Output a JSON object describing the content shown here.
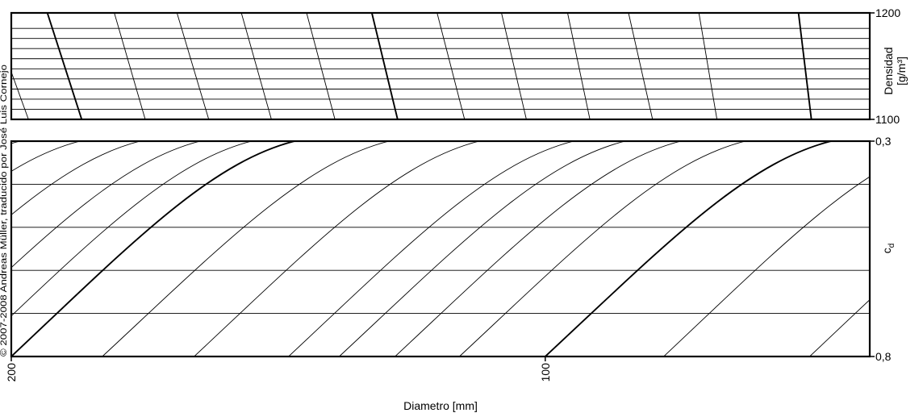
{
  "copyright": "© 2007-2008 Andreas Müller, traducido por José Luis Cornejo",
  "chart_data": [
    {
      "type": "line",
      "name": "density-panel",
      "ylabel_line1": "Densidad",
      "ylabel_line2": "[g/m³]",
      "ylim": [
        1100,
        1200
      ],
      "y_ticks": [
        {
          "value": 1200,
          "label": "1200"
        },
        {
          "value": 1100,
          "label": "1100"
        }
      ],
      "grid_y": [
        1100,
        1109.5,
        1119,
        1128.5,
        1138,
        1147.5,
        1157,
        1166.5,
        1176,
        1185.5,
        1200
      ],
      "xlim": [
        0,
        1
      ],
      "lines": [
        {
          "top": -0.025,
          "bottom": 0.02,
          "major": false
        },
        {
          "top": 0.042,
          "bottom": 0.082,
          "major": true
        },
        {
          "top": 0.12,
          "bottom": 0.156,
          "major": false
        },
        {
          "top": 0.193,
          "bottom": 0.23,
          "major": false
        },
        {
          "top": 0.268,
          "bottom": 0.303,
          "major": false
        },
        {
          "top": 0.344,
          "bottom": 0.377,
          "major": false
        },
        {
          "top": 0.42,
          "bottom": 0.45,
          "major": true
        },
        {
          "top": 0.496,
          "bottom": 0.528,
          "major": false
        },
        {
          "top": 0.571,
          "bottom": 0.6,
          "major": false
        },
        {
          "top": 0.648,
          "bottom": 0.674,
          "major": false
        },
        {
          "top": 0.719,
          "bottom": 0.747,
          "major": false
        },
        {
          "top": 0.801,
          "bottom": 0.822,
          "major": false
        },
        {
          "top": 0.917,
          "bottom": 0.932,
          "major": true
        }
      ]
    },
    {
      "type": "line",
      "name": "cd-panel",
      "ylabel": "c",
      "ylabel_sub": "d",
      "xlabel": "Diametro [mm]",
      "ylim": [
        0.8,
        0.3
      ],
      "y_ticks": [
        {
          "value": 0.3,
          "label": "0,3"
        },
        {
          "value": 0.8,
          "label": "0,8"
        }
      ],
      "grid_y": [
        0.3,
        0.4,
        0.5,
        0.6,
        0.7,
        0.8
      ],
      "xlim": [
        0,
        1
      ],
      "x_ticks": [
        {
          "position": 0.0,
          "label": "200"
        },
        {
          "position": 0.622,
          "label": "100"
        }
      ],
      "curves": [
        {
          "x_bottom": -0.42,
          "x_top": -0.09,
          "major": false
        },
        {
          "x_bottom": -0.37,
          "x_top": -0.04,
          "major": false
        },
        {
          "x_bottom": -0.32,
          "x_top": 0.01,
          "major": false
        },
        {
          "x_bottom": -0.25,
          "x_top": 0.08,
          "major": false
        },
        {
          "x_bottom": -0.18,
          "x_top": 0.15,
          "major": false
        },
        {
          "x_bottom": -0.11,
          "x_top": 0.22,
          "major": false
        },
        {
          "x_bottom": -0.05,
          "x_top": 0.28,
          "major": false
        },
        {
          "x_bottom": 0.0,
          "x_top": 0.33,
          "major": true
        },
        {
          "x_bottom": 0.106,
          "x_top": 0.44,
          "major": false
        },
        {
          "x_bottom": 0.213,
          "x_top": 0.545,
          "major": false
        },
        {
          "x_bottom": 0.323,
          "x_top": 0.655,
          "major": false
        },
        {
          "x_bottom": 0.382,
          "x_top": 0.715,
          "major": false
        },
        {
          "x_bottom": 0.447,
          "x_top": 0.78,
          "major": false
        },
        {
          "x_bottom": 0.522,
          "x_top": 0.855,
          "major": false
        },
        {
          "x_bottom": 0.622,
          "x_top": 0.955,
          "major": true
        },
        {
          "x_bottom": 0.76,
          "x_top": 1.09,
          "major": false
        },
        {
          "x_bottom": 0.93,
          "x_top": 1.26,
          "major": false
        }
      ]
    }
  ]
}
